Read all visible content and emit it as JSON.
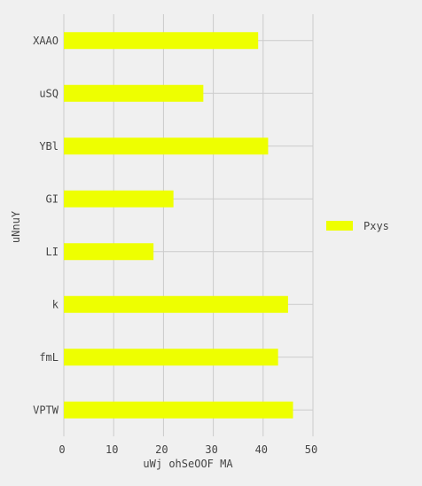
{
  "chart_data": {
    "type": "bar",
    "orientation": "horizontal",
    "categories": [
      "XAAO",
      "uSQ",
      "YBl",
      "GI",
      "LI",
      "k",
      "fmL",
      "VPTW"
    ],
    "series": [
      {
        "name": "Pxys",
        "values": [
          39,
          28,
          41,
          22,
          18,
          45,
          43,
          46
        ],
        "color": "#eeff00"
      }
    ],
    "xlabel": "uWj ohSeOOF MA",
    "ylabel": "uNnuY",
    "xlim": [
      0,
      50
    ],
    "xticks": [
      "0",
      "10",
      "20",
      "30",
      "40",
      "50"
    ],
    "grid": true,
    "legend_position": "right",
    "colors": {
      "background": "#f0f0f0",
      "grid": "#cbcbcb",
      "text": "#444444"
    }
  }
}
